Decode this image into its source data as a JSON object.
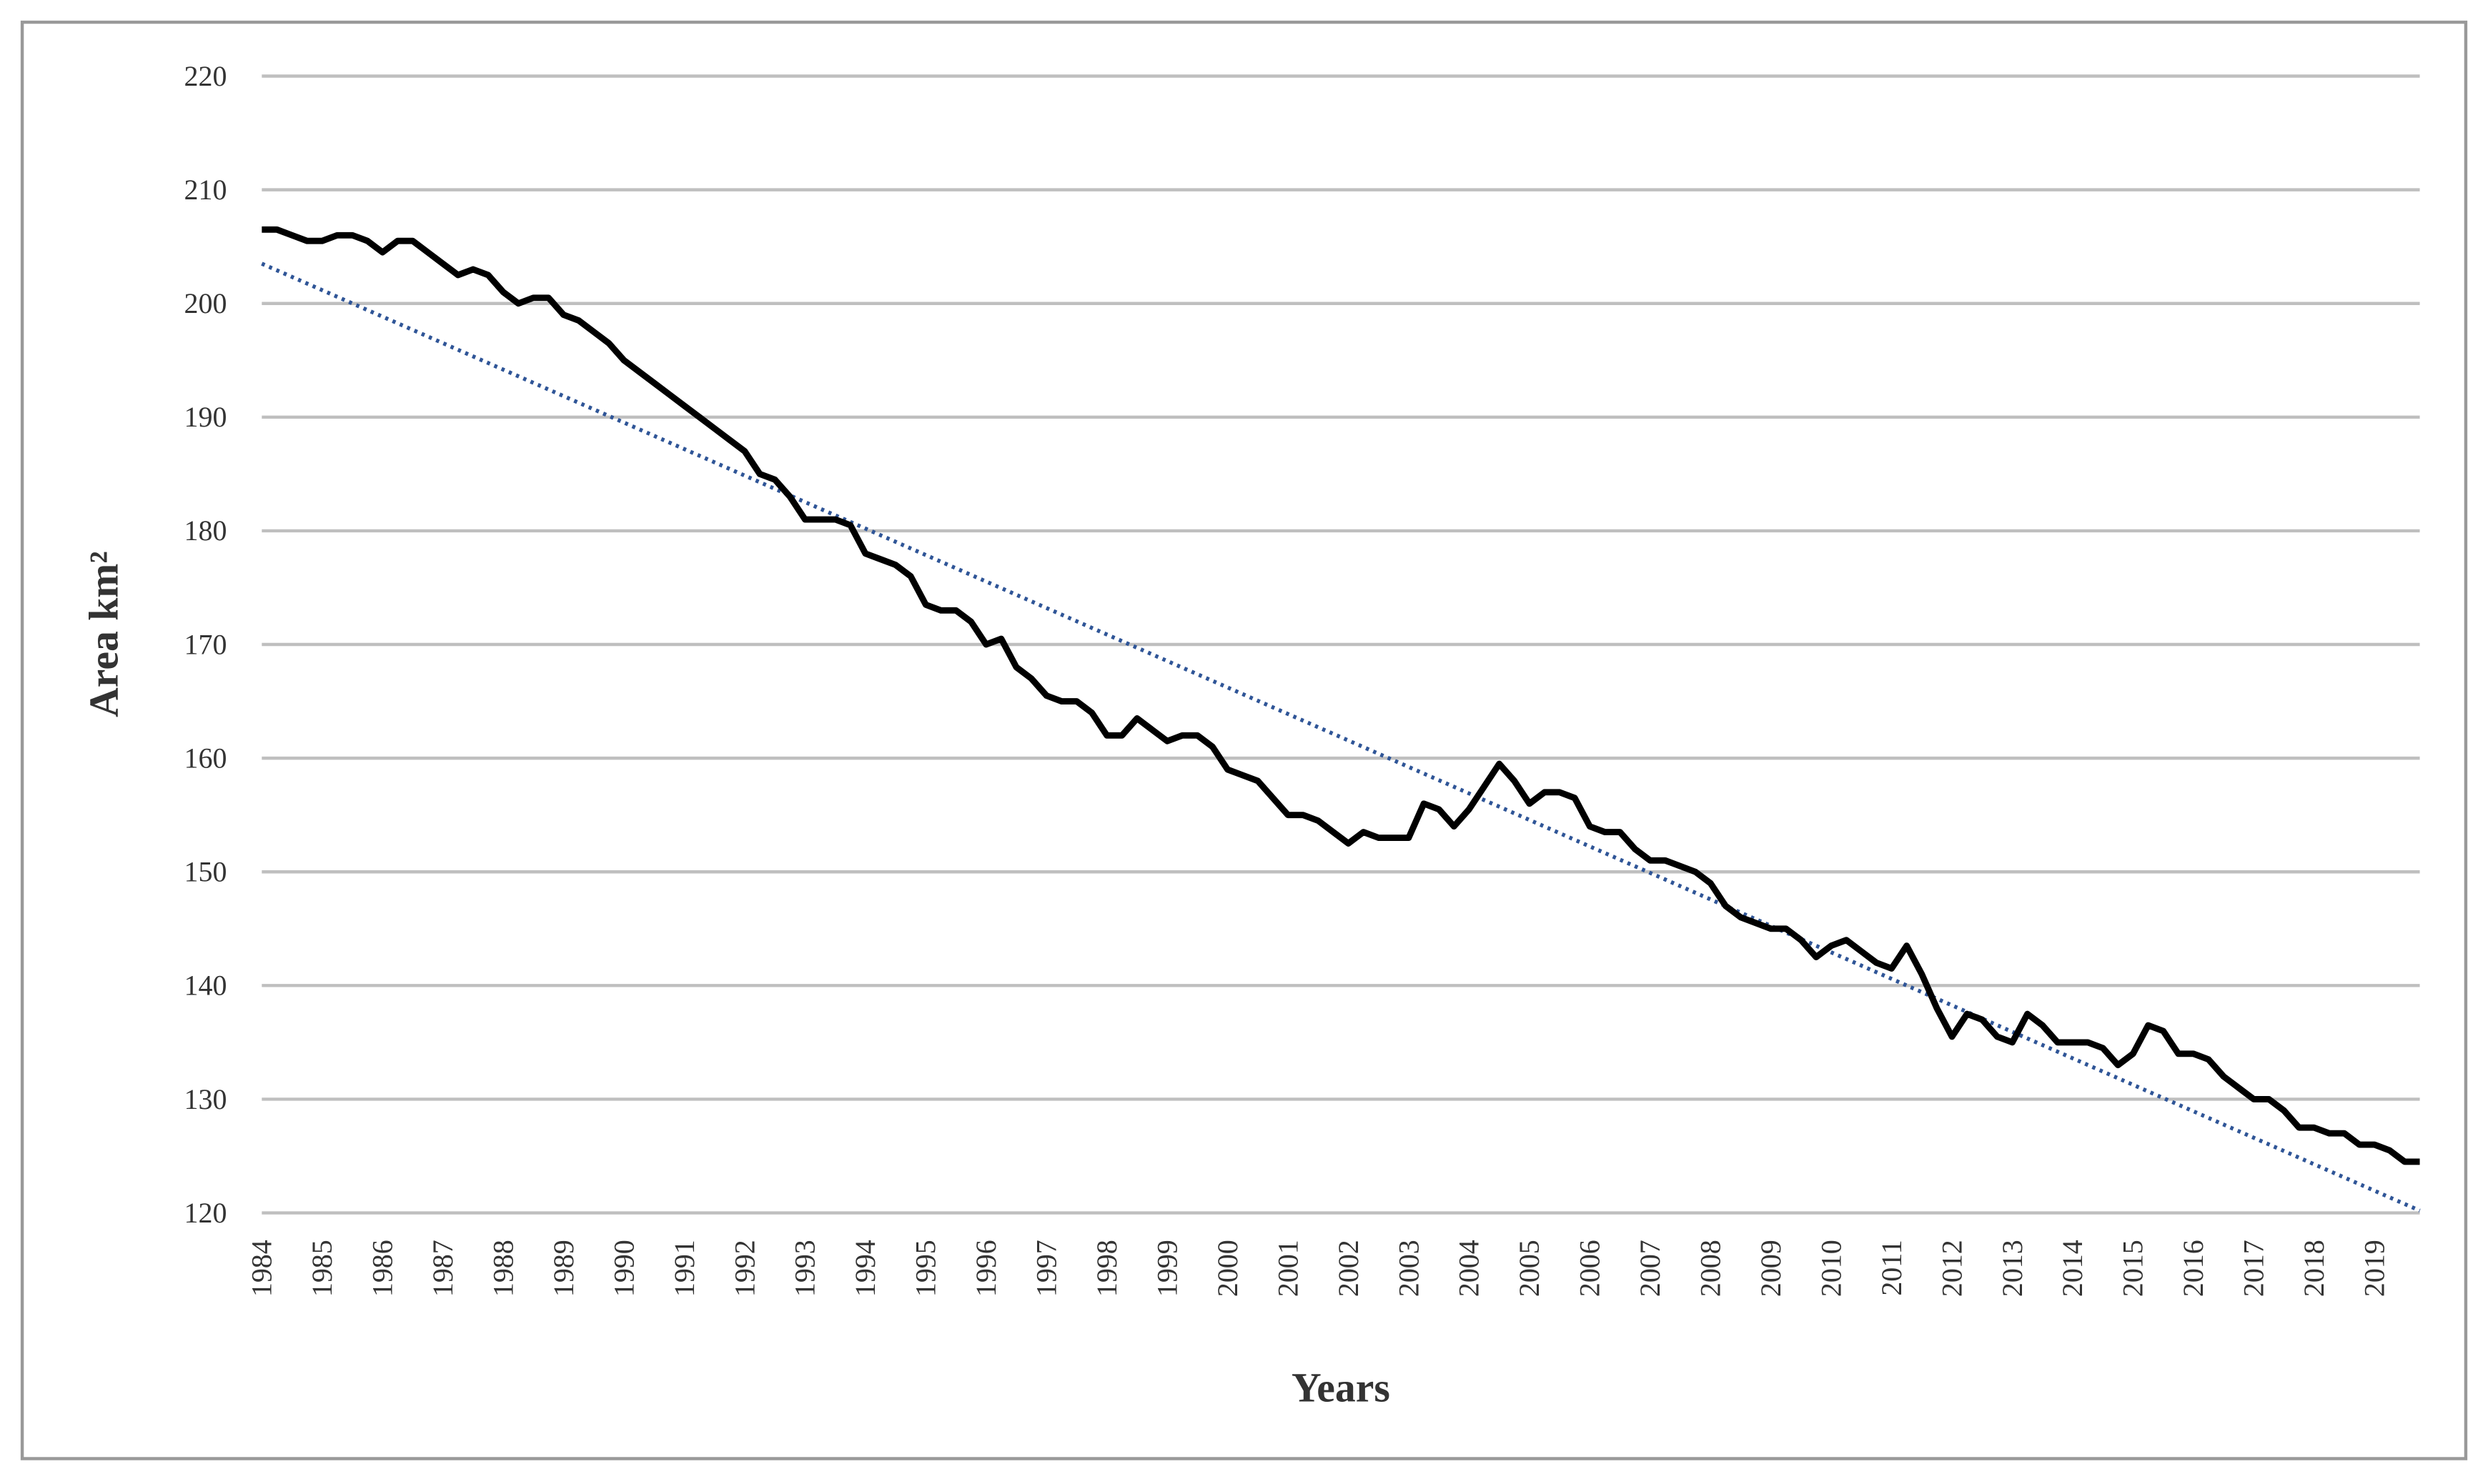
{
  "chart_data": {
    "type": "line",
    "x_label": "Years",
    "y_label": "Area km²",
    "categories": [
      "1984",
      null,
      null,
      null,
      "1985",
      null,
      null,
      null,
      "1986",
      null,
      null,
      null,
      "1987",
      null,
      null,
      null,
      "1988",
      null,
      null,
      null,
      "1989",
      null,
      null,
      null,
      "1990",
      null,
      null,
      null,
      "1991",
      null,
      null,
      null,
      "1992",
      null,
      null,
      null,
      "1993",
      null,
      null,
      null,
      "1994",
      null,
      null,
      null,
      "1995",
      null,
      null,
      null,
      "1996",
      null,
      null,
      null,
      "1997",
      null,
      null,
      null,
      "1998",
      null,
      null,
      null,
      "1999",
      null,
      null,
      null,
      "2000",
      null,
      null,
      null,
      "2001",
      null,
      null,
      null,
      "2002",
      null,
      null,
      null,
      "2003",
      null,
      null,
      null,
      "2004",
      null,
      null,
      null,
      "2005",
      null,
      null,
      null,
      "2006",
      null,
      null,
      null,
      "2007",
      null,
      null,
      null,
      "2008",
      null,
      null,
      null,
      "2009",
      null,
      null,
      null,
      "2010",
      null,
      null,
      null,
      "2011",
      null,
      null,
      null,
      "2012",
      null,
      null,
      null,
      "2013",
      null,
      null,
      null,
      "2014",
      null,
      null,
      null,
      "2015",
      null,
      null,
      null,
      "2016",
      null,
      null,
      null,
      "2017",
      null,
      null,
      null,
      "2018",
      null,
      null,
      null,
      "2019",
      null,
      null,
      null
    ],
    "series": [
      {
        "color": "#000000",
        "values": [
          206.5,
          206.5,
          206,
          205.5,
          205.5,
          206,
          206,
          205.5,
          204.5,
          205.5,
          205.5,
          204.5,
          203.5,
          202.5,
          203,
          202.5,
          201,
          200,
          200.5,
          200.5,
          199,
          198.5,
          197.5,
          196.5,
          195,
          194,
          193,
          192,
          191,
          190,
          189,
          188,
          187,
          185,
          184.5,
          183,
          181,
          181,
          181,
          180.5,
          178,
          177.5,
          177,
          176,
          173.5,
          173,
          173,
          172,
          170,
          170.5,
          168,
          167,
          165.5,
          165,
          165,
          164,
          162,
          162,
          163.5,
          162.5,
          161.5,
          162,
          162,
          161,
          159,
          158.5,
          158,
          156.5,
          155,
          155,
          154.5,
          153.5,
          152.5,
          153.5,
          153,
          153,
          153,
          156,
          155.5,
          154,
          155.5,
          157.5,
          159.5,
          158,
          156,
          157,
          157,
          156.5,
          154,
          153.5,
          153.5,
          152,
          151,
          151,
          150.5,
          150,
          149,
          147,
          146,
          145.5,
          145,
          145,
          144,
          142.5,
          143.5,
          144,
          143,
          142,
          141.5,
          143.5,
          141,
          138,
          135.5,
          137.5,
          137,
          135.5,
          135,
          137.5,
          136.5,
          135,
          135,
          135,
          134.5,
          133,
          134,
          136.5,
          136,
          134,
          134,
          133.5,
          132,
          131,
          130,
          130,
          129,
          127.5,
          127.5,
          127,
          127,
          126,
          126,
          125.5,
          124.5,
          124.5
        ]
      }
    ],
    "trendline": {
      "color": "#2f5597",
      "values": [
        203.5,
        120.2
      ]
    },
    "ylim": [
      120,
      220
    ],
    "yticks": [
      120,
      130,
      140,
      150,
      160,
      170,
      180,
      190,
      200,
      210,
      220
    ],
    "grid": true
  }
}
